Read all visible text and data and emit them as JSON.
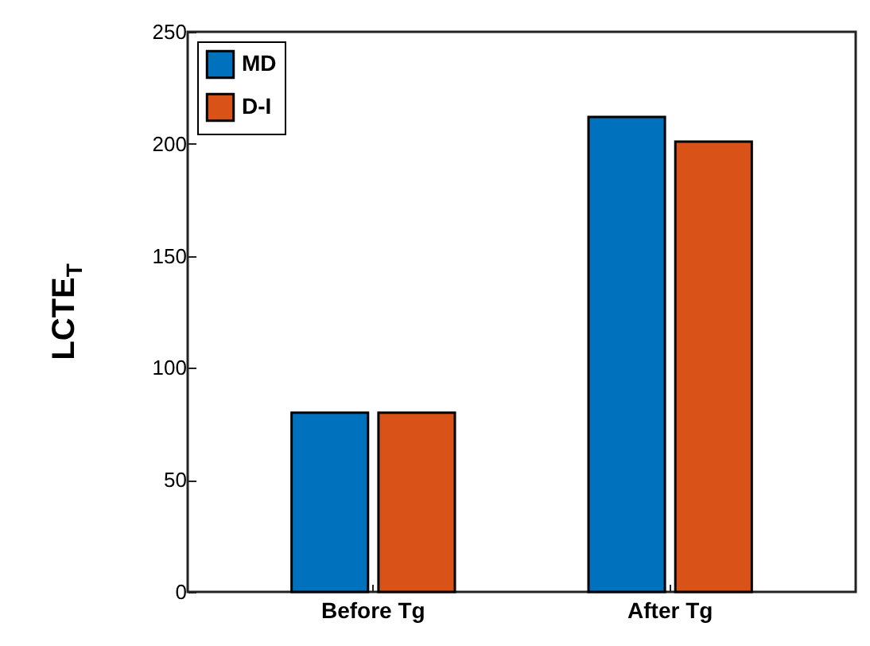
{
  "chart_data": {
    "type": "bar",
    "ylabel": "LCTE$_{T}$",
    "categories": [
      "Before Tg",
      "After Tg"
    ],
    "series": [
      {
        "name": "MD",
        "color": "#0072bd",
        "values": [
          80,
          212
        ]
      },
      {
        "name": "D-I",
        "color": "#d95319",
        "values": [
          80,
          201
        ]
      }
    ],
    "ylim": [
      0,
      250
    ],
    "yticks": [
      0,
      50,
      100,
      150,
      200,
      250
    ],
    "grid": false,
    "legend": "top left"
  }
}
